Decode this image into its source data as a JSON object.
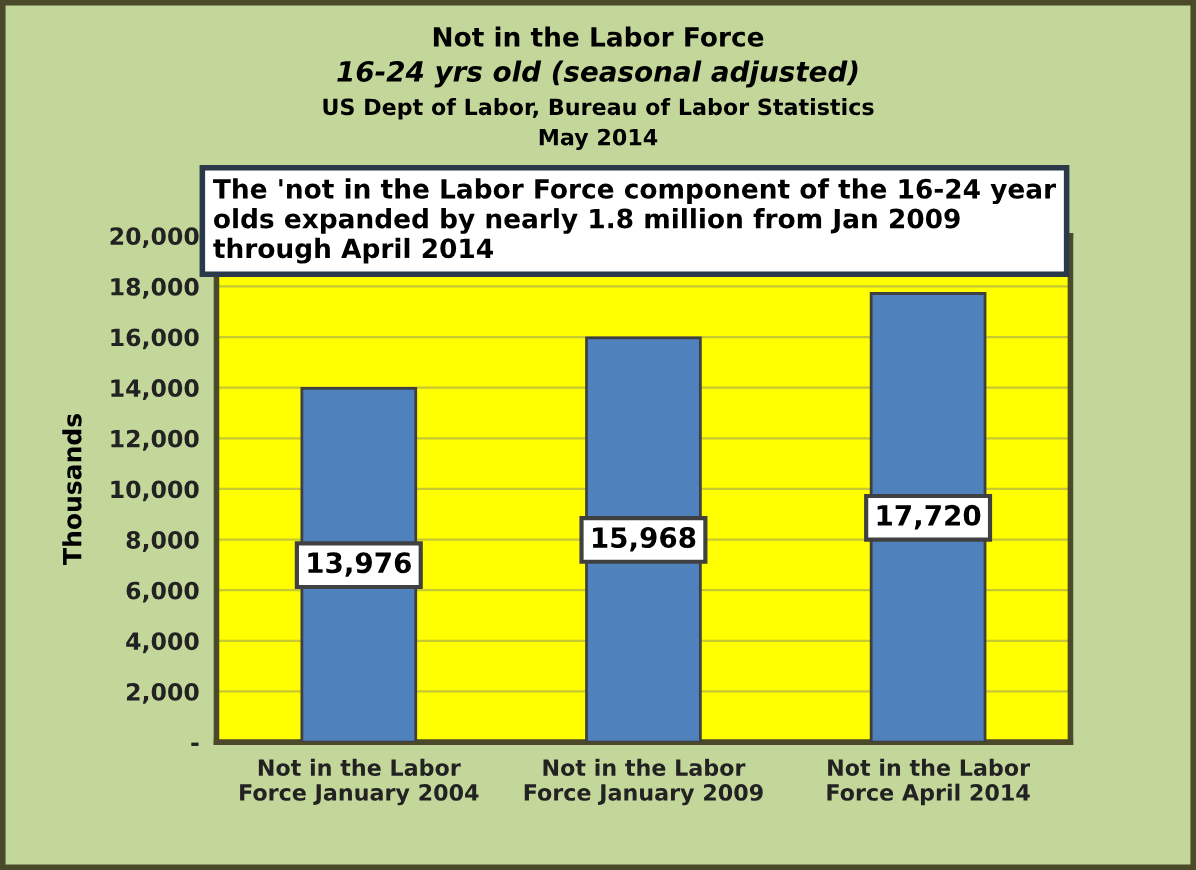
{
  "chart_data": {
    "type": "bar",
    "title": "Not in the Labor Force",
    "subtitle": "16-24 yrs old (seasonal adjusted)",
    "ylabel": "Thousands",
    "annotations": [
      "US Dept of Labor, Bureau of Labor Statistics",
      "May 2014",
      "The 'not in the Labor Force component of the 16-24 year olds expanded by nearly 1.8 million from Jan 2009 through April 2014"
    ],
    "categories": [
      "Not in the Labor\nForce January 2004",
      "Not in the Labor\nForce January 2009",
      "Not in the Labor\nForce April 2014"
    ],
    "values": [
      13976,
      15968,
      17720
    ],
    "value_labels": [
      "13,976",
      "15,968",
      "17,720"
    ],
    "color": "#4f81bd",
    "ylim": [
      0,
      20000
    ],
    "yticks": [
      {
        "value": 0,
        "label": "-"
      },
      {
        "value": 2000,
        "label": "2,000"
      },
      {
        "value": 4000,
        "label": "4,000"
      },
      {
        "value": 6000,
        "label": "6,000"
      },
      {
        "value": 8000,
        "label": "8,000"
      },
      {
        "value": 10000,
        "label": "10,000"
      },
      {
        "value": 12000,
        "label": "12,000"
      },
      {
        "value": 14000,
        "label": "14,000"
      },
      {
        "value": 16000,
        "label": "16,000"
      },
      {
        "value": 18000,
        "label": "18,000"
      },
      {
        "value": 20000,
        "label": "20,000"
      }
    ],
    "grid": "y",
    "legend": false
  }
}
